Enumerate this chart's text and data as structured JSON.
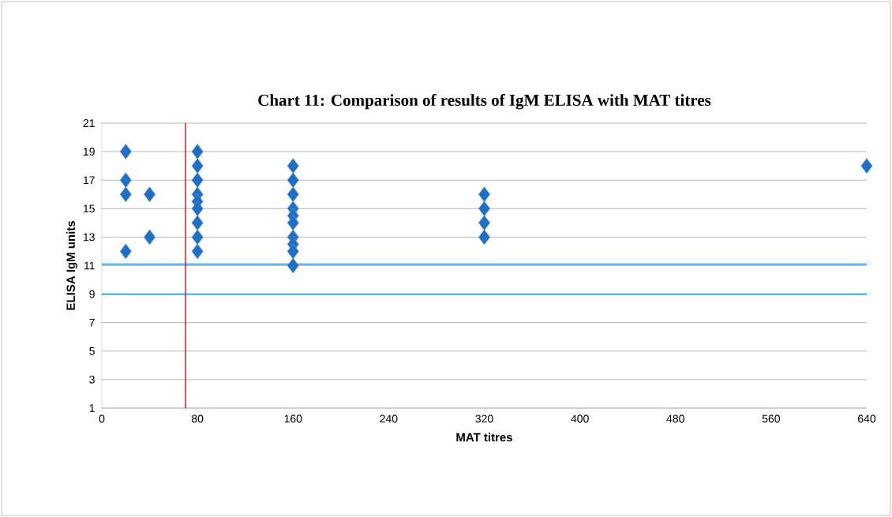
{
  "chart_data": {
    "type": "scatter",
    "title": "Chart   11: Comparison of results of IgM ELISA with MAT titres",
    "xlabel": "MAT titres",
    "ylabel": "ELISA IgM units",
    "x": [
      20,
      20,
      20,
      20,
      40,
      40,
      80,
      80,
      80,
      80,
      80,
      80,
      80,
      80,
      80,
      160,
      160,
      160,
      160,
      160,
      160,
      160,
      160,
      160,
      160,
      320,
      320,
      320,
      320,
      640
    ],
    "series": [
      {
        "color": "#1f6fc5",
        "values": [
          19,
          17,
          16,
          12,
          16,
          13,
          19,
          18,
          17,
          16,
          15.5,
          15,
          14,
          13,
          12,
          18,
          17,
          16,
          15,
          14.5,
          14,
          13,
          12.5,
          12,
          11,
          16,
          15,
          14,
          13,
          18
        ]
      }
    ],
    "xlim": [
      0,
      640
    ],
    "xticks": [
      0,
      80,
      160,
      240,
      320,
      400,
      480,
      560,
      640
    ],
    "ylim": [
      1,
      21
    ],
    "yticks": [
      1,
      3,
      5,
      7,
      9,
      11,
      13,
      15,
      17,
      19,
      21
    ],
    "ref_lines": [
      {
        "axis": "y",
        "value": 11.1,
        "color": "#0070c0"
      },
      {
        "axis": "y",
        "value": 9,
        "color": "#0070c0"
      },
      {
        "axis": "x",
        "value": 70,
        "color": "#c00000"
      }
    ],
    "grid": "y",
    "marker": "diamond"
  }
}
